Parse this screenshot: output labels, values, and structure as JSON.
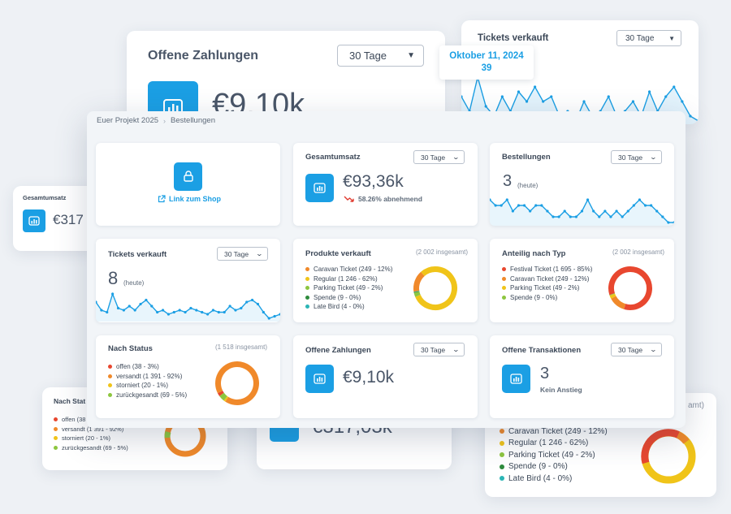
{
  "colors": {
    "accent": "#1b9fe4",
    "down": "#e03c31"
  },
  "background": {
    "offene_zahlungen": {
      "title": "Offene Zahlungen",
      "dropdown": "30 Tage",
      "value": "€9,10k"
    },
    "tickets": {
      "title": "Tickets verkauft",
      "dropdown": "30 Tage"
    },
    "tooltip": {
      "date": "Oktober 11, 2024",
      "value": "39"
    },
    "gesamtumsatz": {
      "title": "Gesamtumsatz",
      "value": "€317"
    },
    "nach_status": {
      "title": "Nach Stat",
      "items": [
        "offen (38",
        "versandt (1 391 - 92%)",
        "storniert (20 - 1%)",
        "zurückgesandt (69 - 5%)"
      ]
    },
    "mid_value": "€317,03k",
    "typ_total": "amt)",
    "legend_items": [
      "Caravan Ticket (249 - 12%)",
      "Regular (1 246 - 62%)",
      "Parking Ticket (49 - 2%)",
      "Spende (9 - 0%)",
      "Late Bird (4 - 0%)"
    ]
  },
  "breadcrumb": {
    "project": "Euer Projekt 2025",
    "page": "Bestellungen"
  },
  "cards": {
    "shop": {
      "link": "Link zum Shop"
    },
    "gesamtumsatz": {
      "title": "Gesamtumsatz",
      "dropdown": "30 Tage",
      "value": "€93,36k",
      "trend": "58.26% abnehmend"
    },
    "bestellungen": {
      "title": "Bestellungen",
      "dropdown": "30 Tage",
      "value": "3",
      "sub": "(heute)"
    },
    "tickets": {
      "title": "Tickets verkauft",
      "dropdown": "30 Tage",
      "value": "8",
      "sub": "(heute)"
    },
    "produkte": {
      "title": "Produkte verkauft",
      "total": "(2 002 insgesamt)",
      "items": [
        {
          "label": "Caravan Ticket (249 - 12%)",
          "color": "#f0892a",
          "value": 249
        },
        {
          "label": "Regular (1 246 - 62%)",
          "color": "#f0c419",
          "value": 1246
        },
        {
          "label": "Parking Ticket (49 - 2%)",
          "color": "#8dc63f",
          "value": 49
        },
        {
          "label": "Spende (9 - 0%)",
          "color": "#2e8b3d",
          "value": 9
        },
        {
          "label": "Late Bird (4 - 0%)",
          "color": "#2bb5b5",
          "value": 4
        }
      ]
    },
    "typ": {
      "title": "Anteilig nach Typ",
      "total": "(2 002 insgesamt)",
      "items": [
        {
          "label": "Festival Ticket (1 695 - 85%)",
          "color": "#e8472f",
          "value": 1695
        },
        {
          "label": "Caravan Ticket (249 - 12%)",
          "color": "#f0892a",
          "value": 249
        },
        {
          "label": "Parking Ticket (49 - 2%)",
          "color": "#f0c419",
          "value": 49
        },
        {
          "label": "Spende (9 - 0%)",
          "color": "#8dc63f",
          "value": 9
        }
      ]
    },
    "status": {
      "title": "Nach Status",
      "total": "(1 518 insgesamt)",
      "items": [
        {
          "label": "offen (38 - 3%)",
          "color": "#e8472f",
          "value": 38
        },
        {
          "label": "versandt (1 391 - 92%)",
          "color": "#f0892a",
          "value": 1391
        },
        {
          "label": "storniert (20 - 1%)",
          "color": "#f0c419",
          "value": 20
        },
        {
          "label": "zurückgesandt (69 - 5%)",
          "color": "#8dc63f",
          "value": 69
        }
      ]
    },
    "zahlungen": {
      "title": "Offene Zahlungen",
      "dropdown": "30 Tage",
      "value": "€9,10k"
    },
    "transaktionen": {
      "title": "Offene Transaktionen",
      "dropdown": "30 Tage",
      "value": "3",
      "sub": "Kein Anstieg"
    }
  },
  "chart_data": [
    {
      "type": "line",
      "name": "bestellungen-sparkline",
      "values": [
        6,
        5,
        5,
        6,
        4,
        5,
        5,
        4,
        5,
        5,
        4,
        3,
        3,
        4,
        3,
        3,
        4,
        6,
        4,
        3,
        4,
        3,
        4,
        3,
        4,
        5,
        6,
        5,
        5,
        4,
        3,
        2,
        2
      ]
    },
    {
      "type": "line",
      "name": "tickets-sparkline",
      "values": [
        22,
        14,
        12,
        30,
        16,
        14,
        18,
        14,
        20,
        24,
        18,
        12,
        14,
        10,
        12,
        14,
        12,
        16,
        14,
        12,
        10,
        14,
        12,
        12,
        18,
        14,
        16,
        22,
        24,
        20,
        12,
        6,
        8,
        10
      ]
    },
    {
      "type": "line",
      "name": "bg-tickets-sparkline",
      "values": [
        14,
        8,
        22,
        10,
        6,
        14,
        8,
        16,
        12,
        18,
        12,
        14,
        6,
        8,
        4,
        12,
        6,
        8,
        14,
        6,
        8,
        12,
        6,
        16,
        8,
        14,
        18,
        12,
        6,
        4
      ]
    }
  ]
}
